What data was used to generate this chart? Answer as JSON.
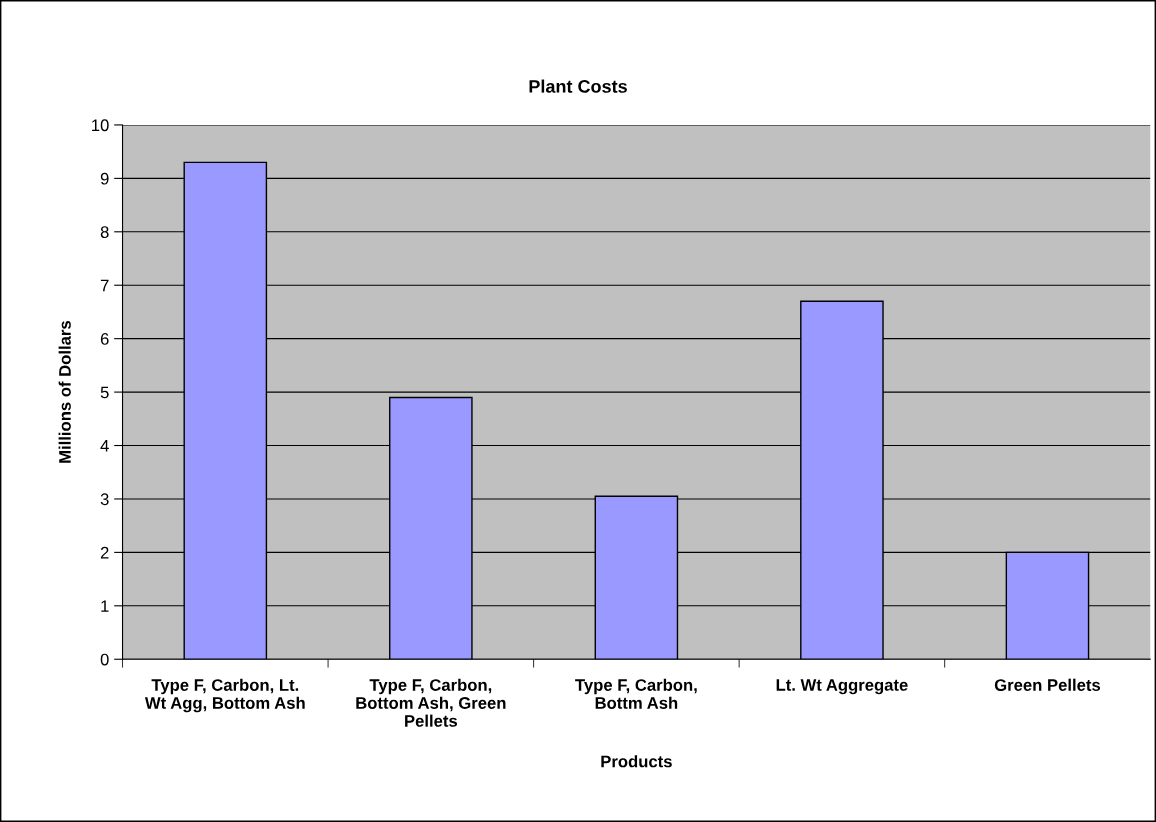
{
  "chart_data": {
    "type": "bar",
    "title": "Plant Costs",
    "xlabel": "Products",
    "ylabel": "Millions of Dollars",
    "categories": [
      "Type F, Carbon, Lt.\nWt Agg, Bottom Ash",
      "Type F, Carbon,\nBottom Ash, Green\nPellets",
      "Type F, Carbon,\nBottm Ash",
      "Lt. Wt Aggregate",
      "Green Pellets"
    ],
    "values": [
      9.3,
      4.9,
      3.05,
      6.7,
      2.0
    ],
    "color": "#9999ff",
    "ylim": [
      0,
      10
    ],
    "yticks": [
      0,
      1,
      2,
      3,
      4,
      5,
      6,
      7,
      8,
      9,
      10
    ],
    "grid": "y",
    "legend": false
  }
}
